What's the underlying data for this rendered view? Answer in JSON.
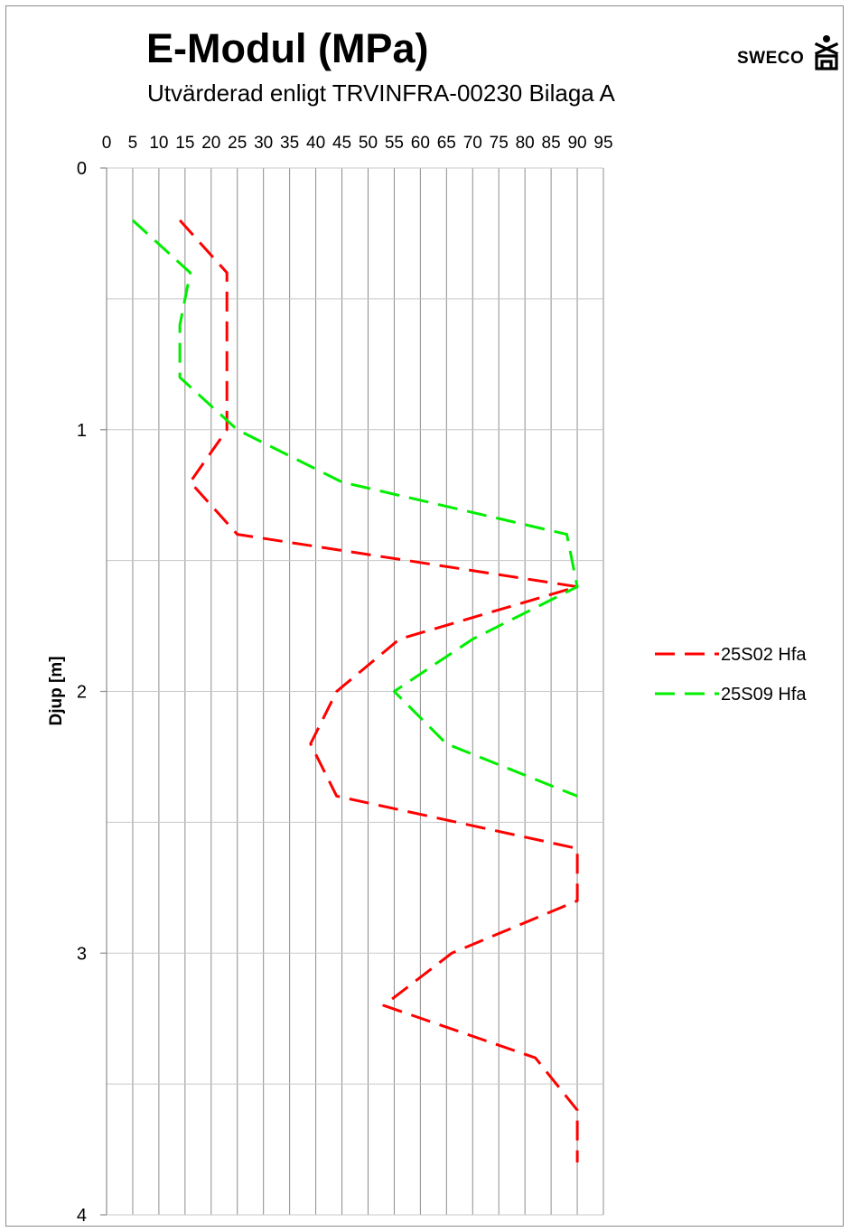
{
  "chart_data": {
    "type": "line",
    "title": "E-Modul (MPa)",
    "subtitle": "Utvärderad enligt TRVINFRA-00230 Bilaga A",
    "xlabel": "",
    "ylabel": "Djup [m]",
    "x_axis_position": "top",
    "y_axis_inverted": true,
    "xlim": [
      0,
      95
    ],
    "ylim": [
      0,
      4
    ],
    "x_ticks": [
      "0",
      "5",
      "10",
      "15",
      "20",
      "25",
      "30",
      "35",
      "40",
      "45",
      "50",
      "55",
      "60",
      "65",
      "70",
      "75",
      "80",
      "85",
      "90",
      "95"
    ],
    "y_ticks": [
      "0",
      "1",
      "2",
      "3",
      "4"
    ],
    "x_gridlines": true,
    "y_gridlines_minor_step": 0.5,
    "legend_position": "right",
    "series": [
      {
        "name": "25S02 Hfa",
        "color": "#ff0000",
        "points": [
          {
            "x": 14,
            "y": 0.2
          },
          {
            "x": 23,
            "y": 0.4
          },
          {
            "x": 23,
            "y": 0.6
          },
          {
            "x": 23,
            "y": 0.8
          },
          {
            "x": 23,
            "y": 1.0
          },
          {
            "x": 16,
            "y": 1.2
          },
          {
            "x": 25,
            "y": 1.4
          },
          {
            "x": 90,
            "y": 1.6
          },
          {
            "x": 56,
            "y": 1.8
          },
          {
            "x": 44,
            "y": 2.0
          },
          {
            "x": 39,
            "y": 2.2
          },
          {
            "x": 44,
            "y": 2.4
          },
          {
            "x": 90,
            "y": 2.6
          },
          {
            "x": 90,
            "y": 2.8
          },
          {
            "x": 66,
            "y": 3.0
          },
          {
            "x": 53,
            "y": 3.2
          },
          {
            "x": 82,
            "y": 3.4
          },
          {
            "x": 90,
            "y": 3.6
          },
          {
            "x": 90,
            "y": 3.8
          }
        ]
      },
      {
        "name": "25S09 Hfa",
        "color": "#00ee00",
        "points": [
          {
            "x": 5,
            "y": 0.2
          },
          {
            "x": 16,
            "y": 0.4
          },
          {
            "x": 14,
            "y": 0.6
          },
          {
            "x": 14,
            "y": 0.8
          },
          {
            "x": 25,
            "y": 1.0
          },
          {
            "x": 45,
            "y": 1.2
          },
          {
            "x": 88,
            "y": 1.4
          },
          {
            "x": 90,
            "y": 1.6
          },
          {
            "x": 70,
            "y": 1.8
          },
          {
            "x": 55,
            "y": 2.0
          },
          {
            "x": 65,
            "y": 2.2
          },
          {
            "x": 90,
            "y": 2.4
          }
        ]
      }
    ]
  },
  "logo": {
    "text": "SWECO",
    "icon": "sweco-figure-icon"
  }
}
